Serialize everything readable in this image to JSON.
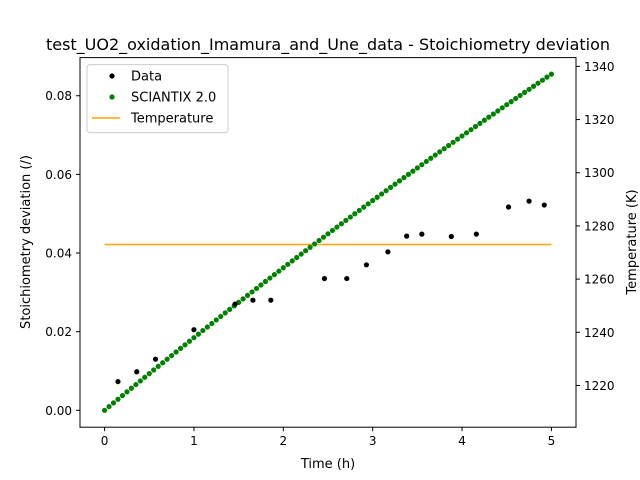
{
  "chart_data": {
    "type": "scatter",
    "title": "test_UO2_oxidation_Imamura_and_Une_data - Stoichiometry deviation",
    "xlabel": "Time (h)",
    "ylabel": "Stoichiometry deviation (/)",
    "y2label": "Temperature (K)",
    "xlim": [
      -0.275,
      5.275
    ],
    "ylim": [
      -0.0043,
      0.0897
    ],
    "y2lim": [
      1204.3,
      1343.3
    ],
    "xticks": [
      0,
      1,
      2,
      3,
      4,
      5
    ],
    "xtick_labels": [
      "0",
      "1",
      "2",
      "3",
      "4",
      "5"
    ],
    "yticks": [
      0.0,
      0.02,
      0.04,
      0.06,
      0.08
    ],
    "ytick_labels": [
      "0.00",
      "0.02",
      "0.04",
      "0.06",
      "0.08"
    ],
    "y2ticks": [
      1220,
      1240,
      1260,
      1280,
      1300,
      1320,
      1340
    ],
    "y2tick_labels": [
      "1220",
      "1240",
      "1260",
      "1280",
      "1300",
      "1320",
      "1340"
    ],
    "legend_position": "top-left",
    "series": [
      {
        "name": "Data",
        "kind": "scatter",
        "color": "#000000",
        "axis": "left",
        "x": [
          0.15,
          0.36,
          0.57,
          1.0,
          1.46,
          1.66,
          1.86,
          2.46,
          2.71,
          2.93,
          3.17,
          3.38,
          3.55,
          3.88,
          4.16,
          4.52,
          4.75,
          4.92
        ],
        "y": [
          0.0073,
          0.0098,
          0.013,
          0.0205,
          0.027,
          0.028,
          0.028,
          0.0335,
          0.0335,
          0.037,
          0.0403,
          0.0443,
          0.0448,
          0.0442,
          0.0448,
          0.0517,
          0.0532,
          0.0522
        ]
      },
      {
        "name": "SCIANTIX 2.0",
        "kind": "scatter",
        "color": "#008000",
        "axis": "left",
        "x_start": 0.0,
        "x_end": 5.0,
        "num_points": 101,
        "y_start": 0.0,
        "y_end": 0.0855,
        "curvature": 0.1
      },
      {
        "name": "Temperature",
        "kind": "line",
        "color": "#ffa500",
        "axis": "right",
        "x": [
          0.0,
          5.0
        ],
        "y": [
          1273,
          1273
        ]
      }
    ]
  }
}
